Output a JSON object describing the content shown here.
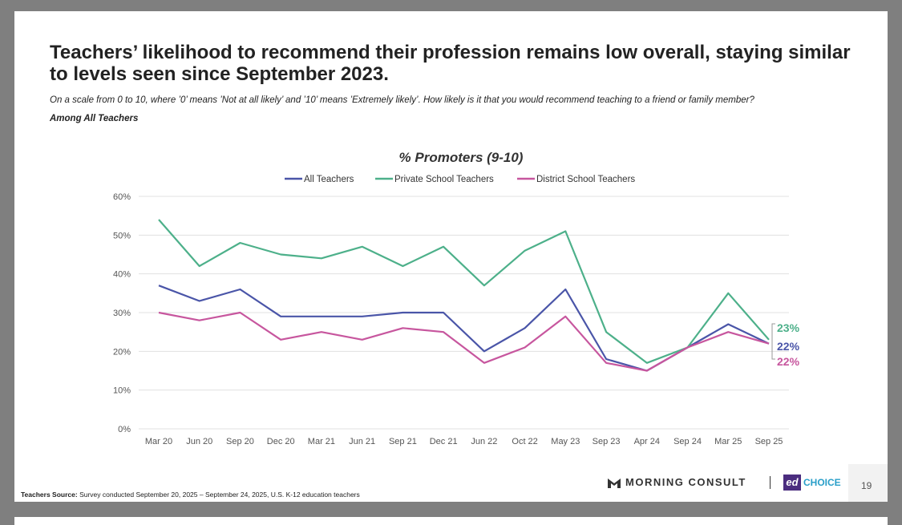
{
  "slide": {
    "title": "Teachers’ likelihood to recommend their profession remains low overall, staying similar to levels seen since September 2023.",
    "question": "On a scale from 0 to 10, where ’0’ means ’Not at all likely’ and ’10’ means ’Extremely likely’. How likely is it that you would recommend teaching to a friend or family member?",
    "subgroup": "Among All Teachers",
    "source_label": "Teachers Source:",
    "source_text": " Survey conducted September 20, 2025 – September 24, 2025, U.S. K-12 education teachers",
    "logo_morning_consult": "MORNING CONSULT",
    "logo_ed": "ed",
    "logo_choice": "CHOICE",
    "page_number": "19"
  },
  "chart_data": {
    "type": "line",
    "title": "% Promoters (9-10)",
    "categories": [
      "Mar 20",
      "Jun 20",
      "Sep 20",
      "Dec 20",
      "Mar 21",
      "Jun 21",
      "Sep 21",
      "Dec 21",
      "Jun 22",
      "Oct 22",
      "May 23",
      "Sep 23",
      "Apr 24",
      "Sep 24",
      "Mar 25",
      "Sep 25"
    ],
    "y_ticks": [
      "0%",
      "10%",
      "20%",
      "30%",
      "40%",
      "50%",
      "60%"
    ],
    "ylim": [
      0,
      60
    ],
    "grid": true,
    "legend_position": "top",
    "series": [
      {
        "name": "All Teachers",
        "color": "#4a55a8",
        "end_label": "22%",
        "values": [
          37,
          33,
          36,
          29,
          29,
          29,
          30,
          30,
          20,
          26,
          36,
          18,
          15,
          21,
          27,
          22
        ]
      },
      {
        "name": "Private School Teachers",
        "color": "#4db08a",
        "end_label": "23%",
        "values": [
          54,
          42,
          48,
          45,
          44,
          47,
          42,
          47,
          37,
          46,
          51,
          25,
          17,
          21,
          35,
          23
        ]
      },
      {
        "name": "District School Teachers",
        "color": "#c7569e",
        "end_label": "22%",
        "values": [
          30,
          28,
          30,
          23,
          25,
          23,
          26,
          25,
          17,
          21,
          29,
          17,
          15,
          21,
          25,
          22
        ]
      }
    ]
  }
}
